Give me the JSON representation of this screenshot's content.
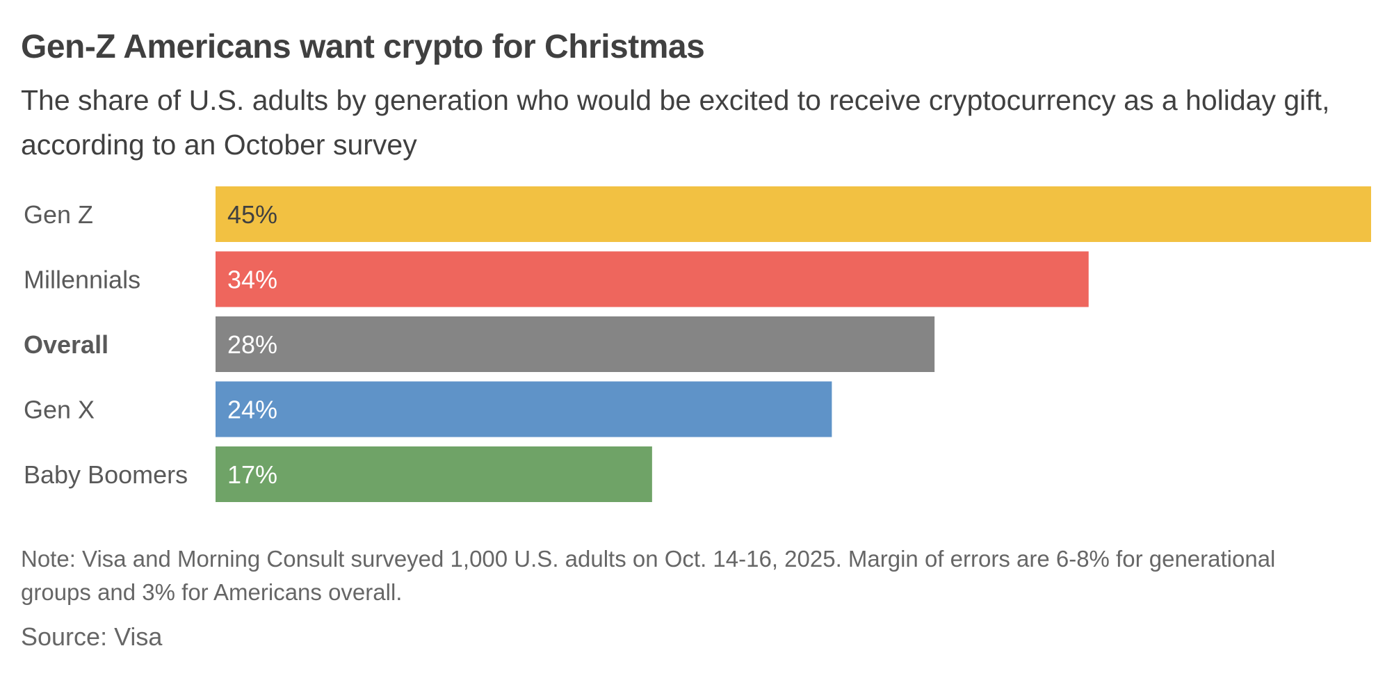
{
  "chart_data": {
    "type": "bar",
    "orientation": "horizontal",
    "title": "Gen-Z Americans want crypto for Christmas",
    "subtitle": "The share of U.S. adults by generation who would be excited to receive cryptocurrency as a holiday gift, according to an October survey",
    "categories": [
      "Gen Z",
      "Millennials",
      "Overall",
      "Gen X",
      "Baby Boomers"
    ],
    "values": [
      45,
      34,
      28,
      24,
      17
    ],
    "value_labels": [
      "45%",
      "34%",
      "28%",
      "24%",
      "17%"
    ],
    "bold_categories": [
      "Overall"
    ],
    "colors": [
      "#f2c142",
      "#ee665d",
      "#858585",
      "#5f93c8",
      "#6fa367"
    ],
    "label_colors": [
      "#404040",
      "#ffffff",
      "#ffffff",
      "#ffffff",
      "#ffffff"
    ],
    "xlim": [
      0,
      45
    ],
    "xlabel": "",
    "ylabel": "",
    "grid": false,
    "note": "Note: Visa and Morning Consult surveyed 1,000 U.S. adults on Oct. 14-16, 2025. Margin of errors are 6-8% for generational groups and 3% for Americans overall.",
    "source": "Source: Visa"
  }
}
